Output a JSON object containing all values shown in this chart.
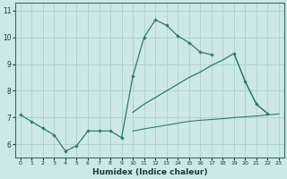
{
  "xlabel": "Humidex (Indice chaleur)",
  "ylabel": "",
  "bg_color": "#cce8e8",
  "line_color": "#2d7a72",
  "grid_color": "#aed0d0",
  "x_values": [
    0,
    1,
    2,
    3,
    4,
    5,
    6,
    7,
    8,
    9,
    10,
    11,
    12,
    13,
    14,
    15,
    16,
    17,
    18,
    19,
    20,
    21,
    22,
    23
  ],
  "line1_y": [
    7.1,
    6.85,
    6.6,
    6.35,
    5.75,
    5.95,
    6.5,
    6.5,
    6.5,
    6.25,
    8.55,
    10.0,
    10.65,
    10.45,
    10.05,
    9.8,
    9.45,
    9.35,
    null,
    9.4,
    8.35,
    7.5,
    7.15,
    null
  ],
  "line2_y": [
    7.1,
    null,
    null,
    null,
    null,
    null,
    null,
    null,
    null,
    null,
    7.2,
    7.5,
    7.75,
    8.0,
    8.25,
    8.5,
    8.7,
    8.95,
    9.15,
    9.4,
    8.35,
    7.5,
    7.15,
    null
  ],
  "line3_y": [
    7.1,
    null,
    null,
    null,
    null,
    null,
    null,
    null,
    null,
    null,
    6.5,
    6.58,
    6.65,
    6.72,
    6.79,
    6.86,
    6.9,
    6.93,
    6.96,
    7.0,
    7.03,
    7.06,
    7.1,
    7.14
  ],
  "line1_markers": [
    0,
    1,
    2,
    3,
    4,
    5,
    6,
    7,
    8,
    9,
    10,
    11,
    12,
    13,
    14,
    15,
    16,
    17,
    19,
    20,
    21,
    22
  ],
  "ylim": [
    5.5,
    11.3
  ],
  "xlim": [
    -0.5,
    23.5
  ]
}
